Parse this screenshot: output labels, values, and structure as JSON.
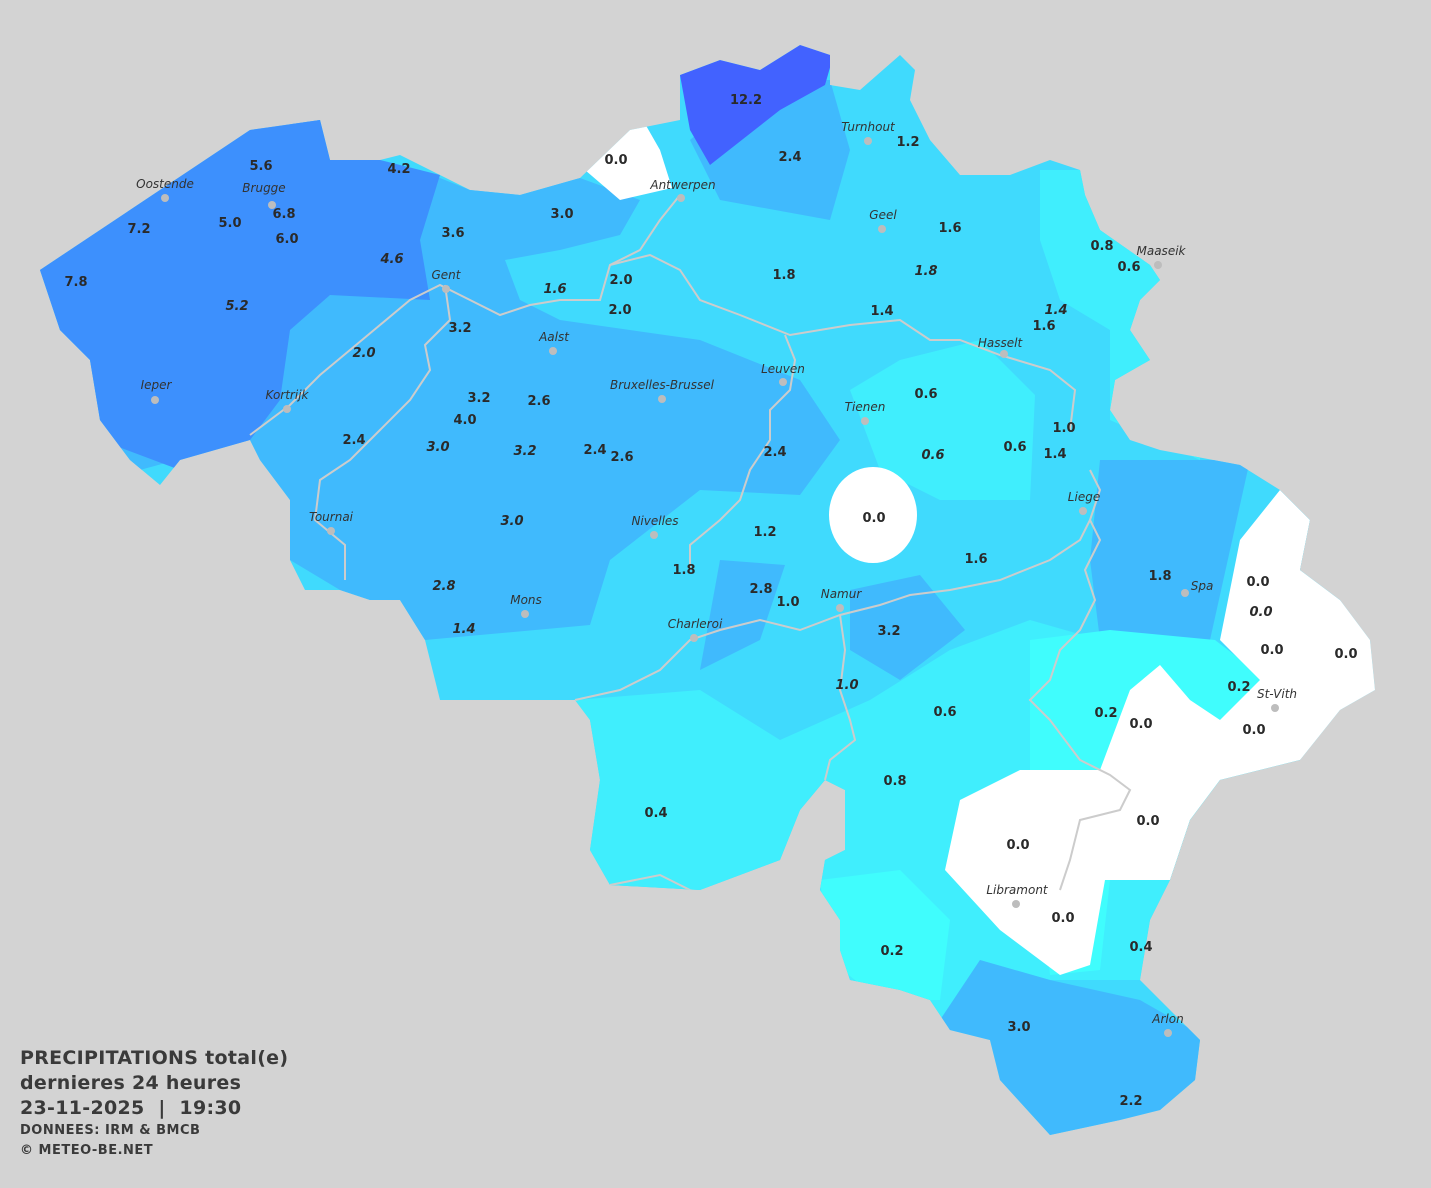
{
  "legend": {
    "title": "PRECIPITATIONS total(e)",
    "period": "dernieres 24 heures",
    "datetime": "23-11-2025  |  19:30",
    "source": "DONNEES: IRM & BMCB",
    "copyright": "© METEO-BE.NET"
  },
  "colors": {
    "background": "#d3d3d3",
    "zero": "#ffffff",
    "very_low": "#40fdfd",
    "low": "#40eefd",
    "medium": "#40dafd",
    "moderate": "#40bafd",
    "high": "#3d90fd",
    "very_high": "#4262ff",
    "rivers": "#cccccc"
  },
  "cities": [
    "Oostende",
    "Brugge",
    "Gent",
    "Antwerpen",
    "Turnhout",
    "Geel",
    "Maaseik",
    "Hasselt",
    "Aalst",
    "Leuven",
    "Bruxelles-Brussel",
    "Ieper",
    "Kortrijk",
    "Tienen",
    "Tournai",
    "Nivelles",
    "Liege",
    "Mons",
    "Charleroi",
    "Namur",
    "Spa",
    "St-Vith",
    "Libramont",
    "Arlon"
  ],
  "values": [
    {
      "v": "12.2",
      "i": false
    },
    {
      "v": "0.0",
      "i": false
    },
    {
      "v": "2.4",
      "i": false
    },
    {
      "v": "1.2",
      "i": false
    },
    {
      "v": "5.6",
      "i": false
    },
    {
      "v": "4.2",
      "i": false
    },
    {
      "v": "6.8",
      "i": false
    },
    {
      "v": "7.2",
      "i": false
    },
    {
      "v": "5.0",
      "i": false
    },
    {
      "v": "6.0",
      "i": false
    },
    {
      "v": "3.0",
      "i": false
    },
    {
      "v": "3.6",
      "i": false
    },
    {
      "v": "1.6",
      "i": false
    },
    {
      "v": "0.8",
      "i": false
    },
    {
      "v": "0.6",
      "i": false
    },
    {
      "v": "7.8",
      "i": false
    },
    {
      "v": "4.6",
      "i": true
    },
    {
      "v": "5.2",
      "i": true
    },
    {
      "v": "1.8",
      "i": false
    },
    {
      "v": "1.8",
      "i": true
    },
    {
      "v": "1.6",
      "i": true
    },
    {
      "v": "2.0",
      "i": false
    },
    {
      "v": "2.0",
      "i": false
    },
    {
      "v": "1.4",
      "i": false
    },
    {
      "v": "1.4",
      "i": true
    },
    {
      "v": "1.6",
      "i": false
    },
    {
      "v": "3.2",
      "i": false
    },
    {
      "v": "2.0",
      "i": true
    },
    {
      "v": "3.2",
      "i": false
    },
    {
      "v": "2.6",
      "i": false
    },
    {
      "v": "4.0",
      "i": false
    },
    {
      "v": "0.6",
      "i": false
    },
    {
      "v": "2.4",
      "i": false
    },
    {
      "v": "3.0",
      "i": true
    },
    {
      "v": "3.2",
      "i": true
    },
    {
      "v": "2.4",
      "i": false
    },
    {
      "v": "2.6",
      "i": false
    },
    {
      "v": "2.4",
      "i": false
    },
    {
      "v": "0.6",
      "i": true
    },
    {
      "v": "0.6",
      "i": false
    },
    {
      "v": "1.0",
      "i": false
    },
    {
      "v": "1.4",
      "i": false
    },
    {
      "v": "3.0",
      "i": true
    },
    {
      "v": "0.0",
      "i": false
    },
    {
      "v": "1.2",
      "i": false
    },
    {
      "v": "1.6",
      "i": false
    },
    {
      "v": "1.8",
      "i": false
    },
    {
      "v": "1.8",
      "i": false
    },
    {
      "v": "0.0",
      "i": false
    },
    {
      "v": "2.8",
      "i": true
    },
    {
      "v": "2.8",
      "i": false
    },
    {
      "v": "0.0",
      "i": true
    },
    {
      "v": "1.0",
      "i": false
    },
    {
      "v": "1.4",
      "i": true
    },
    {
      "v": "3.2",
      "i": false
    },
    {
      "v": "0.0",
      "i": false
    },
    {
      "v": "0.0",
      "i": false
    },
    {
      "v": "1.0",
      "i": true
    },
    {
      "v": "0.2",
      "i": false
    },
    {
      "v": "0.6",
      "i": false
    },
    {
      "v": "0.2",
      "i": false
    },
    {
      "v": "0.0",
      "i": false
    },
    {
      "v": "0.0",
      "i": false
    },
    {
      "v": "0.8",
      "i": false
    },
    {
      "v": "0.0",
      "i": false
    },
    {
      "v": "0.4",
      "i": false
    },
    {
      "v": "0.0",
      "i": false
    },
    {
      "v": "0.0",
      "i": false
    },
    {
      "v": "0.2",
      "i": false
    },
    {
      "v": "0.4",
      "i": false
    },
    {
      "v": "3.0",
      "i": false
    },
    {
      "v": "2.2",
      "i": false
    }
  ]
}
